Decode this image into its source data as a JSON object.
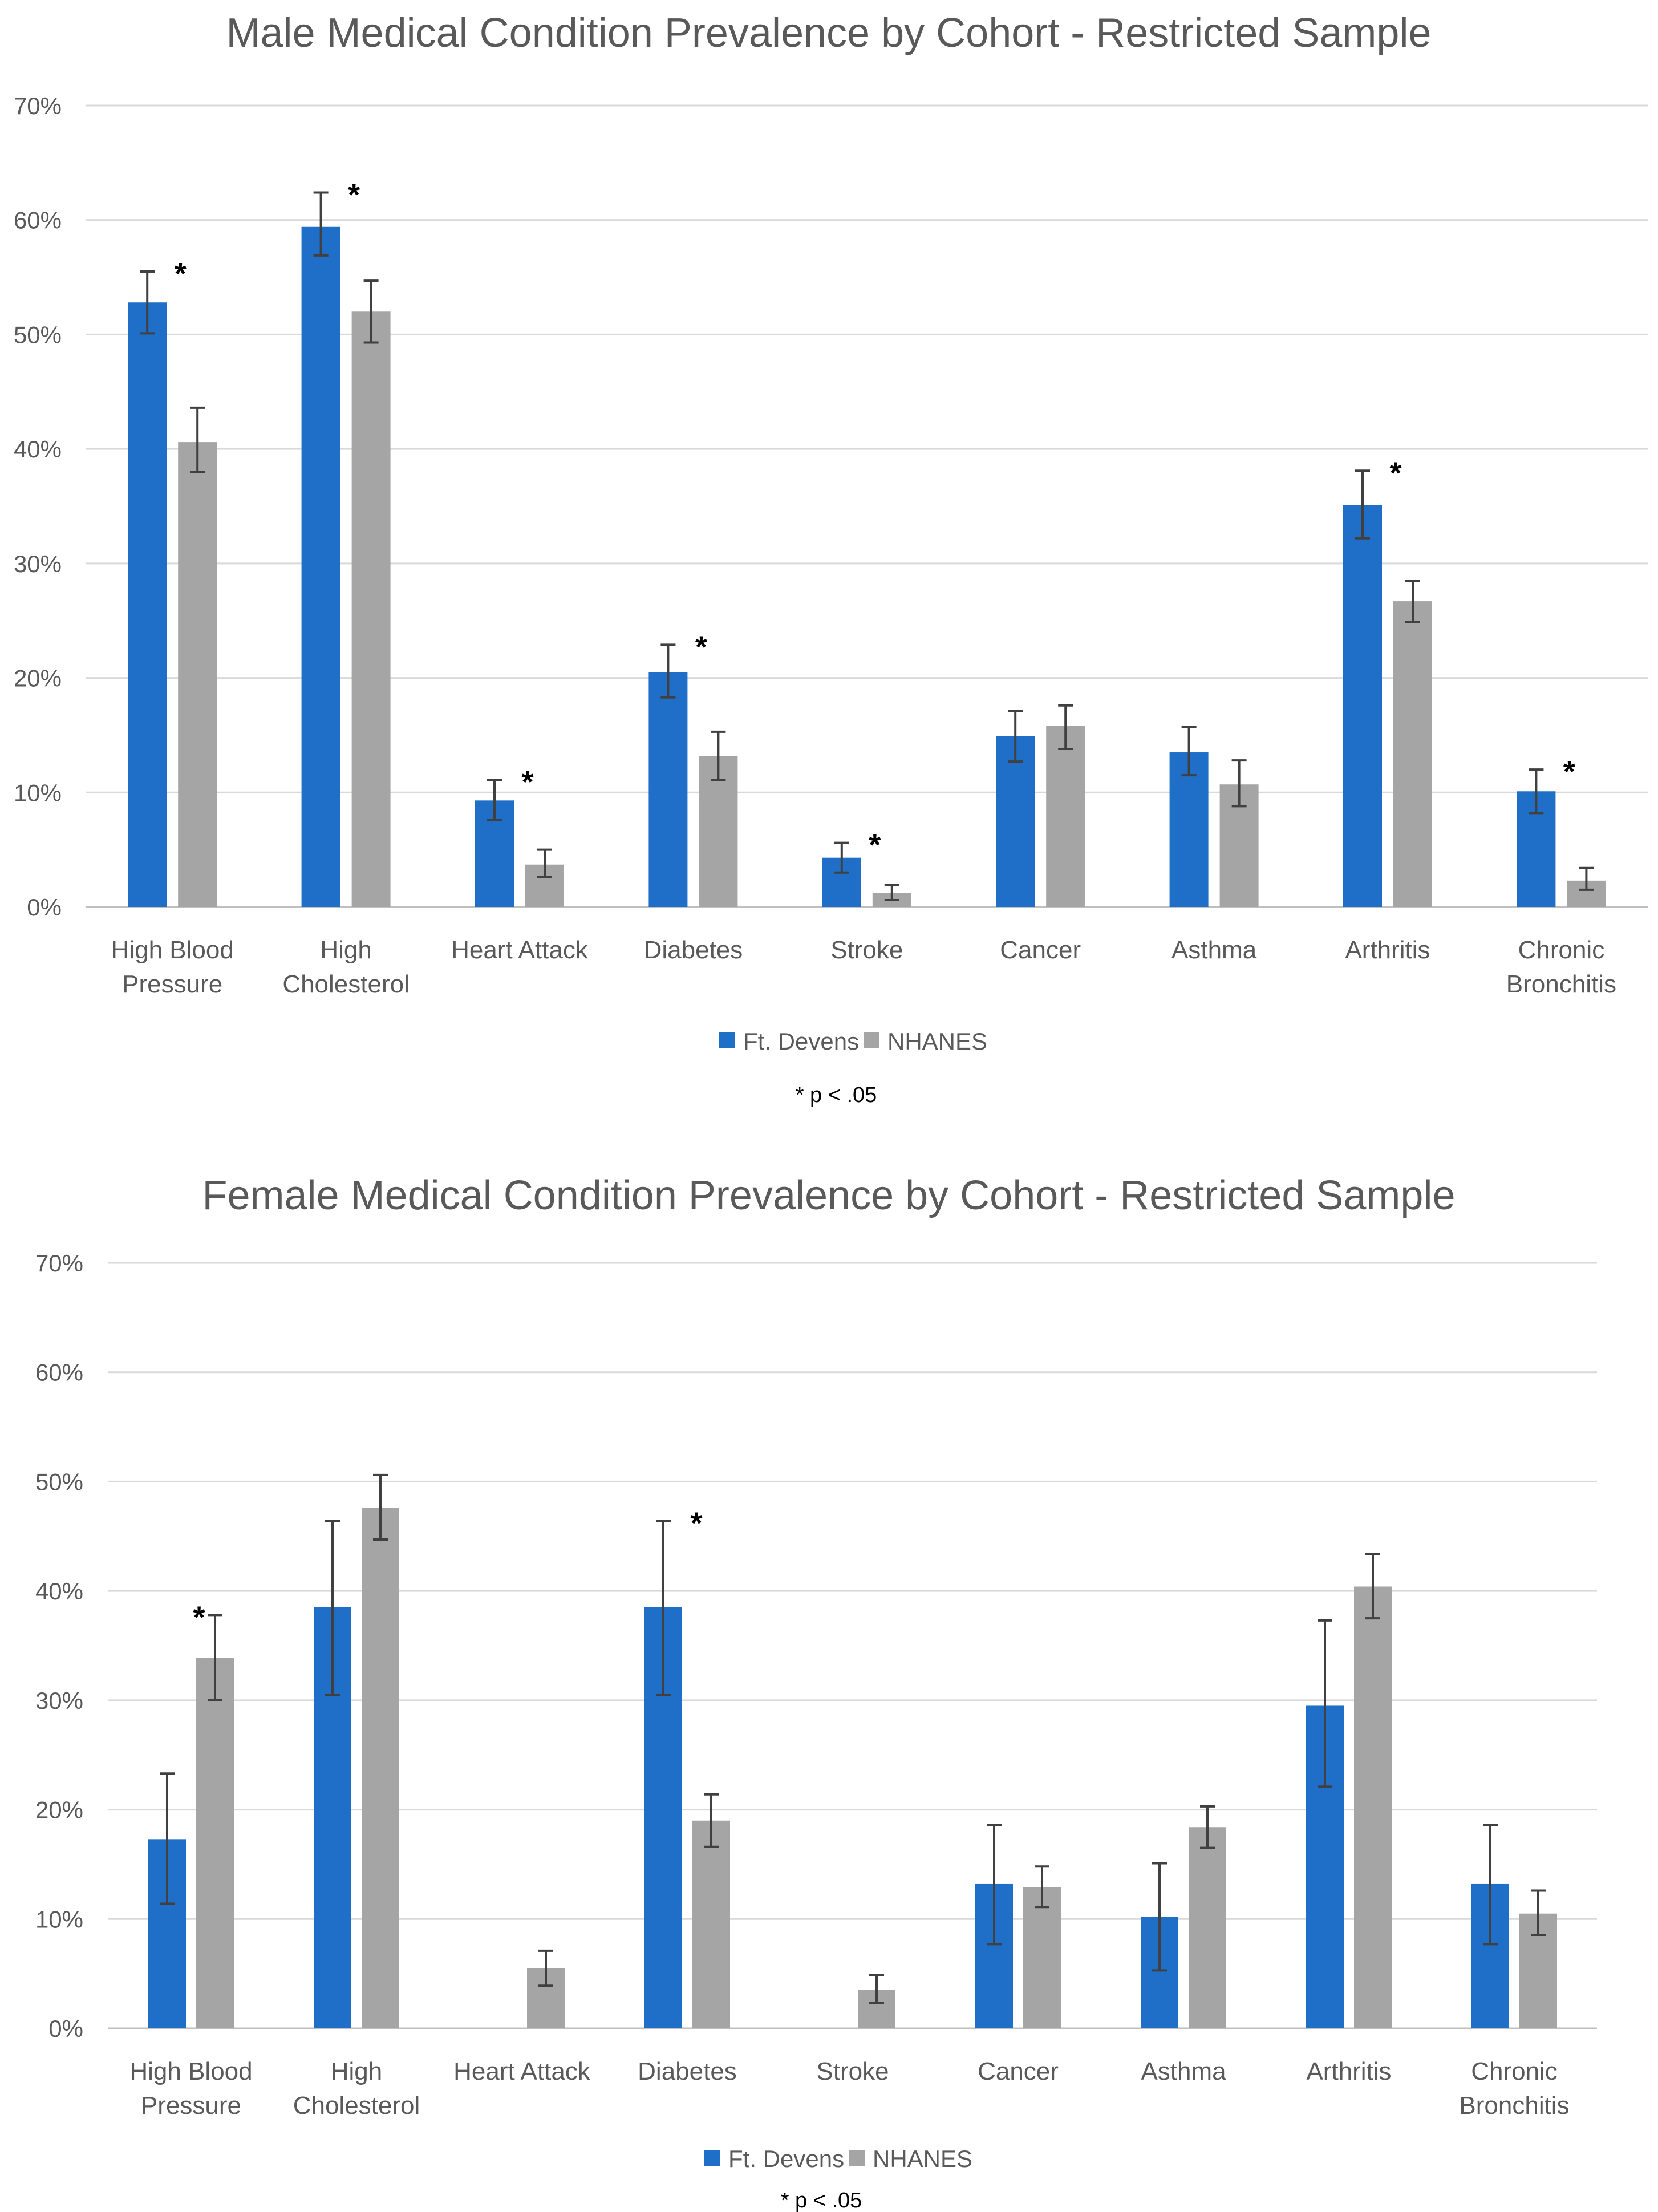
{
  "colors": {
    "ft_devens": "#1f6fc8",
    "nhanes": "#a5a5a5",
    "grid": "#d9d9d9",
    "error": "#404040"
  },
  "chart_data": [
    {
      "type": "bar",
      "title": "Male Medical Condition  Prevalence by Cohort  - Restricted Sample",
      "categories": [
        [
          "High Blood",
          "Pressure"
        ],
        [
          "High",
          "Cholesterol"
        ],
        [
          "Heart Attack"
        ],
        [
          "Diabetes"
        ],
        [
          "Stroke"
        ],
        [
          "Cancer"
        ],
        [
          "Asthma"
        ],
        [
          "Arthritis"
        ],
        [
          "Chronic",
          "Bronchitis"
        ]
      ],
      "ylim": [
        0,
        70
      ],
      "yticks": [
        "0%",
        "10%",
        "20%",
        "30%",
        "40%",
        "50%",
        "60%",
        "70%"
      ],
      "grid": true,
      "series": [
        {
          "name": "Ft. Devens",
          "values": [
            52.8,
            59.4,
            9.3,
            20.5,
            4.3,
            14.9,
            13.5,
            35.1,
            10.1
          ],
          "err_low": [
            50.1,
            56.9,
            7.6,
            18.3,
            3.0,
            12.7,
            11.5,
            32.2,
            8.2
          ],
          "err_high": [
            55.5,
            62.4,
            11.1,
            22.9,
            5.6,
            17.1,
            15.7,
            38.1,
            12.0
          ]
        },
        {
          "name": "NHANES",
          "values": [
            40.6,
            52.0,
            3.7,
            13.2,
            1.2,
            15.8,
            10.7,
            26.7,
            2.3
          ],
          "err_low": [
            38.0,
            49.3,
            2.6,
            11.1,
            0.6,
            13.8,
            8.8,
            24.9,
            1.5
          ],
          "err_high": [
            43.6,
            54.7,
            5.0,
            15.3,
            1.9,
            17.6,
            12.8,
            28.5,
            3.4
          ]
        }
      ],
      "significant": [
        true,
        true,
        true,
        true,
        true,
        false,
        false,
        true,
        true
      ],
      "legend": [
        "Ft. Devens",
        "NHANES"
      ],
      "note": "* p < .05",
      "significance_marker": "*"
    },
    {
      "type": "bar",
      "title": "Female Medical Condition  Prevalence by Cohort  - Restricted Sample",
      "categories": [
        [
          "High Blood",
          "Pressure"
        ],
        [
          "High",
          "Cholesterol"
        ],
        [
          "Heart Attack"
        ],
        [
          "Diabetes"
        ],
        [
          "Stroke"
        ],
        [
          "Cancer"
        ],
        [
          "Asthma"
        ],
        [
          "Arthritis"
        ],
        [
          "Chronic",
          "Bronchitis"
        ]
      ],
      "ylim": [
        0,
        70
      ],
      "yticks": [
        "0%",
        "10%",
        "20%",
        "30%",
        "40%",
        "50%",
        "60%",
        "70%"
      ],
      "grid": true,
      "series": [
        {
          "name": "Ft. Devens",
          "values": [
            17.3,
            38.5,
            0,
            38.5,
            0,
            13.2,
            10.2,
            29.5,
            13.2
          ],
          "err_low": [
            11.4,
            30.5,
            null,
            30.5,
            null,
            7.7,
            5.3,
            22.1,
            7.7
          ],
          "err_high": [
            23.3,
            46.4,
            null,
            46.4,
            null,
            18.6,
            15.1,
            37.3,
            18.6
          ]
        },
        {
          "name": "NHANES",
          "values": [
            33.9,
            47.6,
            5.5,
            19.0,
            3.5,
            12.9,
            18.4,
            40.4,
            10.5
          ],
          "err_low": [
            30.0,
            44.7,
            3.9,
            16.6,
            2.3,
            11.1,
            16.5,
            37.5,
            8.5
          ],
          "err_high": [
            37.8,
            50.6,
            7.1,
            21.4,
            4.9,
            14.8,
            20.3,
            43.4,
            12.6
          ]
        }
      ],
      "significant": [
        true,
        false,
        false,
        true,
        false,
        false,
        false,
        false,
        false
      ],
      "legend": [
        "Ft. Devens",
        "NHANES"
      ],
      "note": "* p < .05",
      "significance_marker": "*"
    }
  ]
}
